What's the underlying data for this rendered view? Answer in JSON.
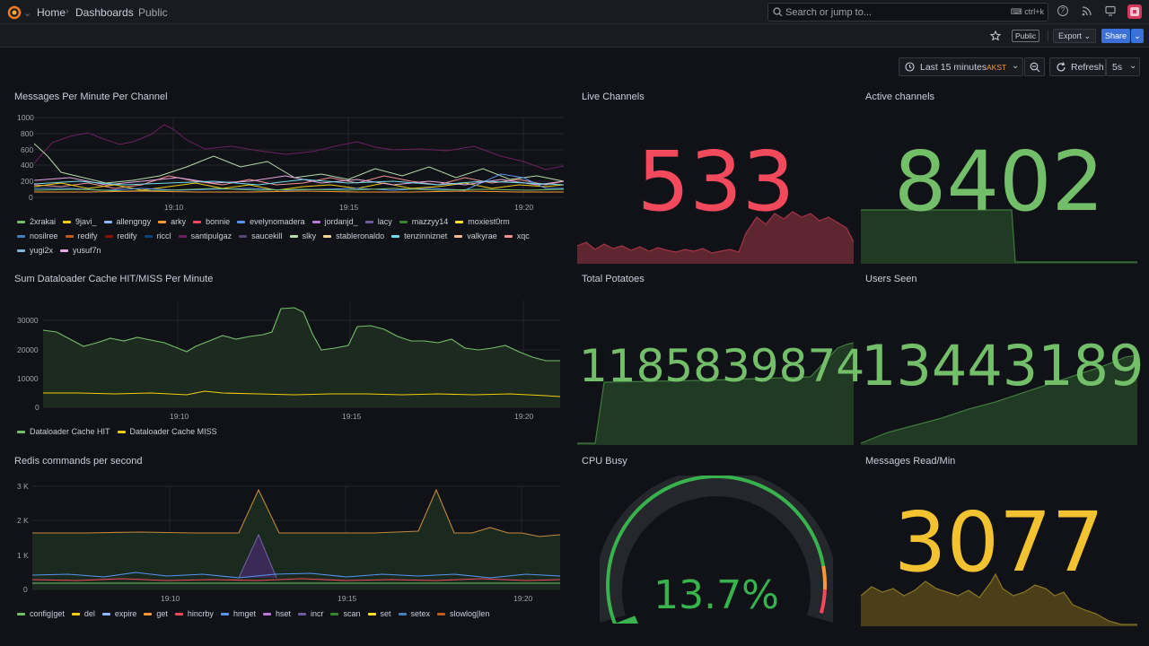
{
  "topbar": {
    "breadcrumb": [
      "Home",
      "Dashboards",
      "Public"
    ],
    "search_placeholder": "Search or jump to...",
    "search_shortcut": "ctrl+k"
  },
  "toolbar": {
    "public_badge": "Public",
    "export_label": "Export",
    "share_label": "Share"
  },
  "controls": {
    "time_range": "Last 15 minutes",
    "timezone": "AKST",
    "refresh_label": "Refresh",
    "refresh_interval": "5s"
  },
  "panels": {
    "messages_per_minute": {
      "title": "Messages Per Minute Per Channel",
      "y_ticks": [
        "1000",
        "800",
        "600",
        "400",
        "200",
        "0"
      ],
      "x_ticks": [
        "19:10",
        "19:15",
        "19:20"
      ],
      "legend": [
        {
          "name": "2xrakai",
          "color": "#73bf69"
        },
        {
          "name": "9javi_",
          "color": "#f2cc0c"
        },
        {
          "name": "allengngy",
          "color": "#8ab8ff"
        },
        {
          "name": "arky",
          "color": "#ff9830"
        },
        {
          "name": "bonnie",
          "color": "#f2495c"
        },
        {
          "name": "evelynomadera",
          "color": "#5794f2"
        },
        {
          "name": "jordanjd_",
          "color": "#b877d9"
        },
        {
          "name": "lacy",
          "color": "#705da0"
        },
        {
          "name": "mazzyy14",
          "color": "#37872d"
        },
        {
          "name": "moxiest0rm",
          "color": "#fade2a"
        },
        {
          "name": "nosilree",
          "color": "#447ebc"
        },
        {
          "name": "redify",
          "color": "#c15c17"
        },
        {
          "name": "redify",
          "color": "#890f02"
        },
        {
          "name": "riccl",
          "color": "#0a437c"
        },
        {
          "name": "santipulgaz",
          "color": "#6d1f62"
        },
        {
          "name": "saucekill",
          "color": "#584477"
        },
        {
          "name": "slky",
          "color": "#b7dbab"
        },
        {
          "name": "stableronaldo",
          "color": "#f4d598"
        },
        {
          "name": "tenzinniznet",
          "color": "#70dbed"
        },
        {
          "name": "valkyrae",
          "color": "#f9ba8f"
        },
        {
          "name": "xqc",
          "color": "#f29191"
        },
        {
          "name": "yugi2x",
          "color": "#82b5d8"
        },
        {
          "name": "yusuf7n",
          "color": "#e5a8e2"
        }
      ]
    },
    "live_channels": {
      "title": "Live Channels",
      "value": "533",
      "color": "#f2495c"
    },
    "active_channels": {
      "title": "Active channels",
      "value": "8402",
      "color": "#73bf69"
    },
    "dataloader_cache": {
      "title": "Sum Dataloader Cache HIT/MISS Per Minute",
      "y_ticks": [
        "30000",
        "20000",
        "10000",
        "0"
      ],
      "x_ticks": [
        "19:10",
        "19:15",
        "19:20"
      ],
      "legend": [
        {
          "name": "Dataloader Cache HIT",
          "color": "#73bf69"
        },
        {
          "name": "Dataloader Cache MISS",
          "color": "#f2cc0c"
        }
      ]
    },
    "total_potatoes": {
      "title": "Total Potatoes",
      "value": "1185839874",
      "color": "#73bf69"
    },
    "users_seen": {
      "title": "Users Seen",
      "value": "13443189",
      "color": "#73bf69"
    },
    "redis_commands": {
      "title": "Redis commands per second",
      "y_ticks": [
        "3 K",
        "2 K",
        "1 K",
        "0"
      ],
      "x_ticks": [
        "19:10",
        "19:15",
        "19:20"
      ],
      "legend": [
        {
          "name": "config|get",
          "color": "#73bf69"
        },
        {
          "name": "del",
          "color": "#f2cc0c"
        },
        {
          "name": "expire",
          "color": "#8ab8ff"
        },
        {
          "name": "get",
          "color": "#ff9830"
        },
        {
          "name": "hincrby",
          "color": "#f2495c"
        },
        {
          "name": "hmget",
          "color": "#5794f2"
        },
        {
          "name": "hset",
          "color": "#b877d9"
        },
        {
          "name": "incr",
          "color": "#705da0"
        },
        {
          "name": "scan",
          "color": "#37872d"
        },
        {
          "name": "set",
          "color": "#fade2a"
        },
        {
          "name": "setex",
          "color": "#447ebc"
        },
        {
          "name": "slowlog|len",
          "color": "#c15c17"
        }
      ]
    },
    "cpu_busy": {
      "title": "CPU Busy",
      "value": "13.7%",
      "percent": 13.7,
      "color": "#37b24d"
    },
    "messages_read": {
      "title": "Messages Read/Min",
      "value": "3077",
      "color": "#f2c231"
    }
  }
}
